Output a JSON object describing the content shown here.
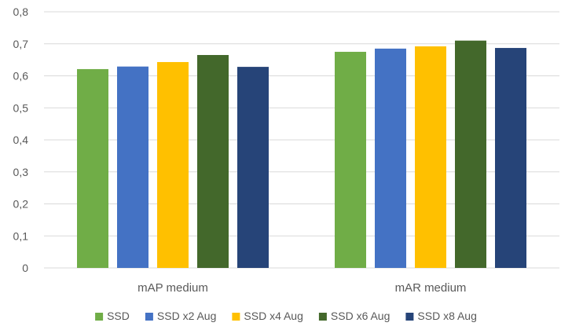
{
  "chart_data": {
    "type": "bar",
    "categories": [
      "mAP medium",
      "mAR medium"
    ],
    "series": [
      {
        "name": "SSD",
        "color": "#70AD47",
        "values": [
          0.621,
          0.675
        ]
      },
      {
        "name": "SSD x2 Aug",
        "color": "#4472C4",
        "values": [
          0.629,
          0.685
        ]
      },
      {
        "name": "SSD x4 Aug",
        "color": "#FFC000",
        "values": [
          0.643,
          0.692
        ]
      },
      {
        "name": "SSD x6 Aug",
        "color": "#43682B",
        "values": [
          0.665,
          0.71
        ]
      },
      {
        "name": "SSD x8 Aug",
        "color": "#264478",
        "values": [
          0.628,
          0.687
        ]
      }
    ],
    "ylim": [
      0,
      0.8
    ],
    "yticks": [
      0,
      0.1,
      0.2,
      0.3,
      0.4,
      0.5,
      0.6,
      0.7,
      0.8
    ],
    "ytick_labels": [
      "0",
      "0,1",
      "0,2",
      "0,3",
      "0,4",
      "0,5",
      "0,6",
      "0,7",
      "0,8"
    ],
    "grid": true,
    "legend_position": "bottom",
    "gridline_color": "#D9D9D9",
    "text_color": "#595959"
  }
}
